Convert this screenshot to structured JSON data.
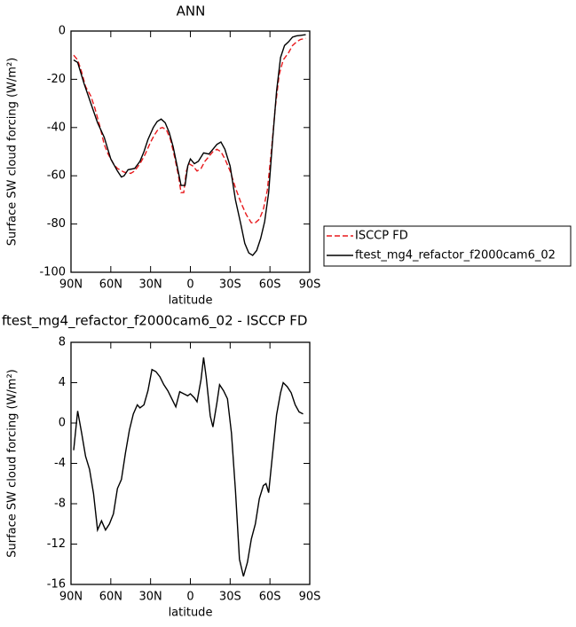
{
  "chart_data": [
    {
      "type": "line",
      "title": "ANN",
      "x_label": "latitude",
      "y_label": "Surface SW cloud forcing (W/m²)",
      "xlim": [
        90,
        -90
      ],
      "xticks": [
        {
          "value": 90,
          "label": "90N"
        },
        {
          "value": 60,
          "label": "60N"
        },
        {
          "value": 30,
          "label": "30N"
        },
        0,
        {
          "value": -30,
          "label": "30S"
        },
        {
          "value": -60,
          "label": "60S"
        },
        {
          "value": -90,
          "label": "90S"
        }
      ],
      "ylim": [
        -100,
        0
      ],
      "yticks": [
        -100,
        -80,
        -60,
        -40,
        -20,
        0
      ],
      "legend_position": "right",
      "series": [
        {
          "name": "ISCCP FD",
          "color": "#e8191c",
          "line_style": "dashed",
          "x": [
            88,
            85,
            82,
            79,
            75,
            72,
            68,
            65,
            62,
            58,
            55,
            50,
            45,
            42,
            38,
            34,
            30,
            27,
            24,
            21,
            18,
            15,
            12,
            9,
            7,
            5,
            3,
            1,
            -2,
            -5,
            -8,
            -11,
            -14,
            -17,
            -20,
            -23,
            -26,
            -30,
            -34,
            -38,
            -42,
            -46,
            -49,
            -52,
            -55,
            -58,
            -61,
            -64,
            -67,
            -70,
            -74,
            -77,
            -80,
            -83,
            -87
          ],
          "values": [
            -10,
            -12,
            -17,
            -23,
            -27,
            -32,
            -40,
            -47,
            -51,
            -55,
            -57,
            -58.5,
            -59,
            -58,
            -55,
            -51,
            -46,
            -43,
            -40.5,
            -40,
            -41,
            -45,
            -52,
            -60,
            -67,
            -67,
            -58,
            -55,
            -56,
            -58,
            -57,
            -54,
            -52,
            -50,
            -49,
            -50,
            -53,
            -58,
            -65,
            -71,
            -76,
            -79.5,
            -79.5,
            -78,
            -74,
            -66,
            -50,
            -32,
            -18,
            -12,
            -9,
            -6,
            -4.5,
            -3.5,
            -3
          ]
        },
        {
          "name": "ftest_mg4_refactor_f2000cam6_02",
          "color": "#000000",
          "line_style": "solid",
          "x": [
            88,
            85,
            80,
            75,
            70,
            65,
            60,
            55,
            52,
            50,
            47,
            42,
            38,
            35,
            32,
            28,
            25,
            22,
            19,
            16,
            13,
            10,
            7,
            4,
            2,
            0,
            -3,
            -6,
            -10,
            -14,
            -17,
            -20,
            -23,
            -26,
            -30,
            -34,
            -38,
            -41,
            -44,
            -47,
            -50,
            -53,
            -56,
            -59,
            -62,
            -65,
            -68,
            -71,
            -74,
            -77,
            -80,
            -83,
            -87
          ],
          "values": [
            -12,
            -13,
            -22,
            -30,
            -38,
            -44,
            -53,
            -58,
            -60.5,
            -60,
            -57.5,
            -57,
            -54,
            -50,
            -45,
            -40,
            -37.5,
            -36.5,
            -38,
            -42,
            -48,
            -56,
            -64,
            -64,
            -56,
            -53,
            -55,
            -54,
            -50.5,
            -51,
            -49,
            -47,
            -46,
            -49,
            -56,
            -70,
            -80,
            -88,
            -92,
            -93,
            -91,
            -86,
            -79,
            -67,
            -45,
            -25,
            -11,
            -6,
            -4.5,
            -2.5,
            -2,
            -1.8,
            -1.5
          ]
        }
      ]
    },
    {
      "type": "line",
      "title": "ftest_mg4_refactor_f2000cam6_02 - ISCCP FD",
      "x_label": "latitude",
      "y_label": "Surface SW cloud forcing (W/m²)",
      "xlim": [
        90,
        -90
      ],
      "xticks": [
        {
          "value": 90,
          "label": "90N"
        },
        {
          "value": 60,
          "label": "60N"
        },
        {
          "value": 30,
          "label": "30N"
        },
        0,
        {
          "value": -30,
          "label": "30S"
        },
        {
          "value": -60,
          "label": "60S"
        },
        {
          "value": -90,
          "label": "90S"
        }
      ],
      "ylim": [
        -16,
        8
      ],
      "yticks": [
        -16,
        -12,
        -8,
        -4,
        0,
        4,
        8
      ],
      "series": [
        {
          "color": "#000000",
          "line_style": "solid",
          "x": [
            88,
            85,
            82,
            79,
            76,
            73,
            70,
            67,
            64,
            61,
            58,
            55,
            52,
            49,
            46,
            43,
            40,
            38,
            35,
            32,
            29,
            26,
            23,
            20,
            17,
            14,
            11,
            8,
            5,
            2,
            0,
            -3,
            -5,
            -8,
            -10,
            -12,
            -15,
            -17,
            -20,
            -22,
            -25,
            -28,
            -31,
            -34,
            -37,
            -40,
            -43,
            -46,
            -49,
            -52,
            -55,
            -57,
            -59,
            -62,
            -65,
            -68,
            -70,
            -73,
            -76,
            -79,
            -82,
            -85
          ],
          "values": [
            -2.7,
            1.2,
            -1,
            -3.3,
            -4.6,
            -7,
            -10.6,
            -9.7,
            -10.6,
            -10,
            -9,
            -6.5,
            -5.6,
            -3,
            -0.7,
            0.9,
            1.8,
            1.5,
            1.8,
            3.2,
            5.3,
            5.1,
            4.6,
            3.8,
            3.2,
            2.4,
            1.6,
            3.1,
            2.9,
            2.7,
            2.9,
            2.5,
            2.1,
            4.3,
            6.5,
            4.5,
            0.7,
            -0.4,
            2,
            3.8,
            3.2,
            2.4,
            -1,
            -6.7,
            -13.5,
            -15.2,
            -13.8,
            -11.5,
            -10,
            -7.5,
            -6.2,
            -6,
            -6.9,
            -3,
            0.8,
            3,
            4,
            3.6,
            3,
            1.8,
            1.1,
            0.9
          ]
        }
      ]
    }
  ]
}
